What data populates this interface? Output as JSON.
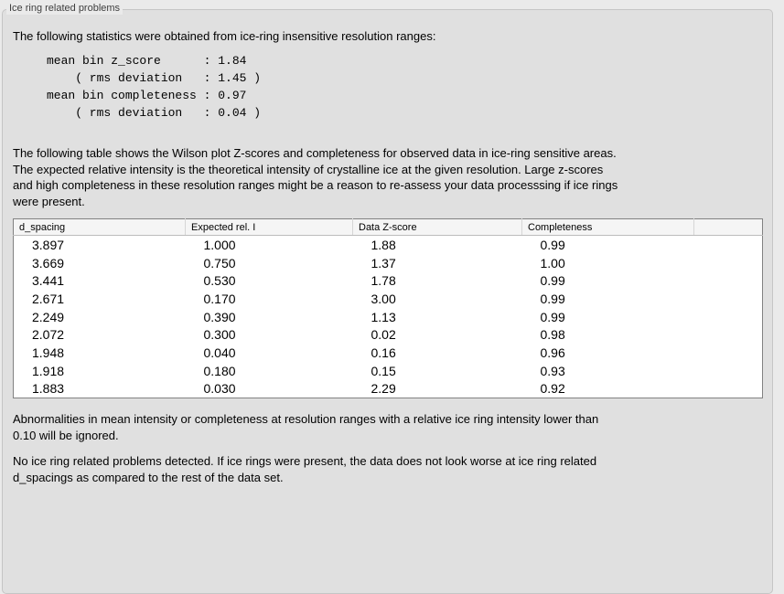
{
  "panel": {
    "group_label": "Ice ring related problems"
  },
  "stats": {
    "intro_text": "The following statistics were obtained from ice-ring insensitive resolution ranges:",
    "values_block": "mean bin z_score      : 1.84\n    ( rms deviation   : 1.45 )\nmean bin completeness : 0.97\n    ( rms deviation   : 0.04 )",
    "mean_bin_z_score": "1.84",
    "z_score_rms_deviation": "1.45",
    "mean_bin_completeness": "0.97",
    "completeness_rms_deviation": "0.04"
  },
  "table_description": "The following table shows the Wilson plot Z-scores and completeness for observed data in ice-ring sensitive areas.\nThe expected relative intensity is the theoretical intensity of crystalline ice at the given resolution. Large z-scores\nand high completeness in these resolution ranges might be a reason to re-assess your data processsing if ice rings\nwere present.",
  "table": {
    "columns": [
      "d_spacing",
      "Expected rel. I",
      "Data Z-score",
      "Completeness",
      ""
    ],
    "rows": [
      [
        "3.897",
        "1.000",
        "1.88",
        "0.99"
      ],
      [
        "3.669",
        "0.750",
        "1.37",
        "1.00"
      ],
      [
        "3.441",
        "0.530",
        "1.78",
        "0.99"
      ],
      [
        "2.671",
        "0.170",
        "3.00",
        "0.99"
      ],
      [
        "2.249",
        "0.390",
        "1.13",
        "0.99"
      ],
      [
        "2.072",
        "0.300",
        "0.02",
        "0.98"
      ],
      [
        "1.948",
        "0.040",
        "0.16",
        "0.96"
      ],
      [
        "1.918",
        "0.180",
        "0.15",
        "0.93"
      ],
      [
        "1.883",
        "0.030",
        "2.29",
        "0.92"
      ]
    ]
  },
  "notes": {
    "ignore_note": "Abnormalities in mean intensity or completeness at resolution ranges with a relative ice ring intensity lower than\n0.10 will be ignored.",
    "conclusion": "No ice ring related problems detected. If ice rings were present, the data does not look worse at ice ring related\nd_spacings as compared to the rest of the data set."
  },
  "colors": {
    "outer_background": "#eaeaea",
    "panel_background": "#e0e0e0",
    "panel_border": "#c5c5c5",
    "table_background": "#ffffff",
    "table_border": "#828282",
    "table_header_background": "#f5f5f5",
    "text": "#000000",
    "label_text": "#3e3e3e"
  }
}
